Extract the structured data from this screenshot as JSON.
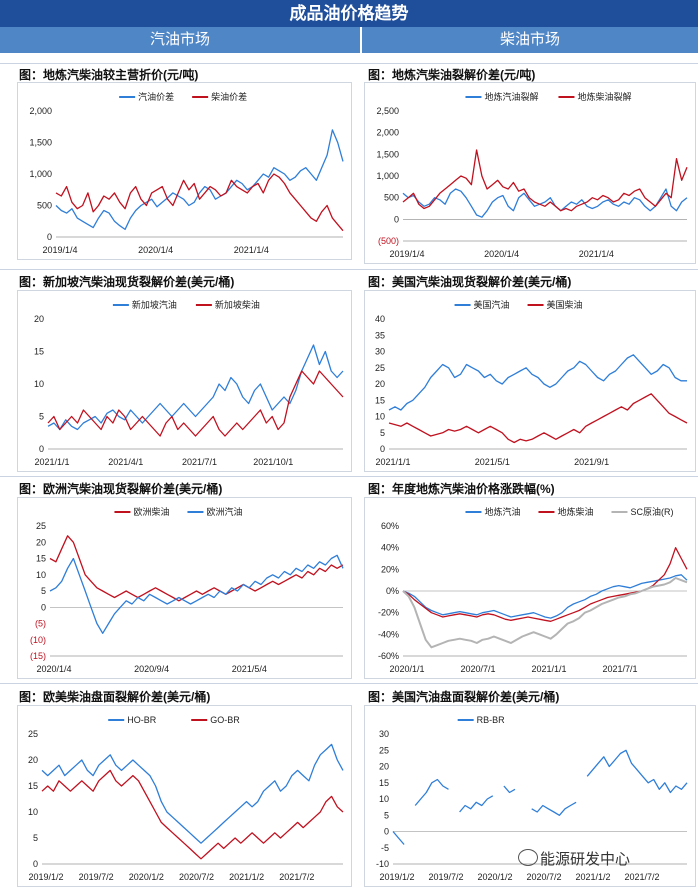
{
  "header": {
    "title": "成品油价格趋势"
  },
  "markets": {
    "gasoline": "汽油市场",
    "diesel": "柴油市场"
  },
  "watermark": "能源研发中心",
  "chart_data": [
    {
      "id": "c1",
      "type": "line",
      "title": "图：地炼汽柴油较主营折价(元/吨)",
      "x_ticks": [
        "2019/1/4",
        "2020/1/4",
        "2021/1/4"
      ],
      "y_ticks": [
        "0",
        "500",
        "1,000",
        "1,500",
        "2,000"
      ],
      "ylim": [
        0,
        2000
      ],
      "legend_position": "top",
      "series": [
        {
          "name": "汽油价差",
          "color": "#2f7ed8",
          "values": [
            500,
            420,
            380,
            450,
            300,
            250,
            200,
            150,
            300,
            420,
            380,
            250,
            180,
            120,
            300,
            420,
            500,
            550,
            600,
            480,
            550,
            620,
            700,
            650,
            600,
            500,
            550,
            700,
            800,
            750,
            600,
            650,
            700,
            800,
            900,
            850,
            750,
            800,
            900,
            1000,
            950,
            1100,
            1050,
            1000,
            900,
            950,
            1050,
            1100,
            1000,
            900,
            1100,
            1300,
            1700,
            1500,
            1200
          ]
        },
        {
          "name": "柴油价差",
          "color": "#c0111f",
          "values": [
            700,
            650,
            800,
            550,
            450,
            500,
            700,
            400,
            500,
            650,
            600,
            700,
            550,
            450,
            700,
            800,
            600,
            500,
            700,
            750,
            800,
            600,
            500,
            700,
            900,
            750,
            850,
            600,
            700,
            800,
            750,
            650,
            700,
            900,
            800,
            750,
            700,
            800,
            850,
            700,
            900,
            1000,
            950,
            850,
            700,
            600,
            500,
            400,
            300,
            250,
            400,
            500,
            300,
            200,
            100
          ]
        }
      ]
    },
    {
      "id": "c2",
      "type": "line",
      "title": "图：地炼汽柴油裂解价差(元/吨)",
      "x_ticks": [
        "2019/1/4",
        "2020/1/4",
        "2021/1/4"
      ],
      "y_ticks": [
        "(500)",
        "0",
        "500",
        "1,000",
        "1,500",
        "2,000",
        "2,500"
      ],
      "ylim": [
        -500,
        2500
      ],
      "legend_position": "top",
      "series": [
        {
          "name": "地炼汽油裂解",
          "color": "#2f7ed8",
          "values": [
            600,
            500,
            550,
            400,
            300,
            350,
            500,
            450,
            350,
            600,
            700,
            650,
            500,
            300,
            100,
            50,
            200,
            400,
            500,
            550,
            300,
            200,
            500,
            600,
            450,
            300,
            350,
            400,
            500,
            300,
            200,
            300,
            400,
            350,
            450,
            300,
            250,
            300,
            400,
            450,
            350,
            300,
            400,
            350,
            500,
            450,
            300,
            200,
            300,
            500,
            700,
            300,
            200,
            400,
            500
          ]
        },
        {
          "name": "地炼柴油裂解",
          "color": "#c0111f",
          "values": [
            400,
            500,
            600,
            350,
            250,
            300,
            450,
            600,
            700,
            800,
            900,
            1000,
            950,
            800,
            1600,
            1000,
            700,
            800,
            900,
            750,
            700,
            850,
            650,
            700,
            500,
            400,
            350,
            300,
            400,
            300,
            200,
            250,
            200,
            300,
            350,
            400,
            500,
            450,
            550,
            500,
            400,
            450,
            600,
            550,
            650,
            700,
            500,
            400,
            300,
            450,
            600,
            500,
            1400,
            900,
            1200
          ]
        }
      ]
    },
    {
      "id": "c3",
      "type": "line",
      "title": "图：新加坡汽柴油现货裂解价差(美元/桶)",
      "x_ticks": [
        "2021/1/1",
        "2021/4/1",
        "2021/7/1",
        "2021/10/1"
      ],
      "y_ticks": [
        "0",
        "5",
        "10",
        "15",
        "20"
      ],
      "ylim": [
        0,
        20
      ],
      "legend_position": "top",
      "series": [
        {
          "name": "新加坡汽油",
          "color": "#2f7ed8",
          "values": [
            3.5,
            4,
            3,
            4.5,
            3.5,
            3,
            4,
            4.5,
            5,
            4,
            5.5,
            6,
            5,
            4.5,
            6,
            5,
            4,
            5,
            6,
            7,
            6,
            5,
            6,
            7,
            6,
            5,
            6,
            7,
            8,
            10,
            9,
            11,
            10,
            8,
            7,
            9,
            10,
            8,
            6,
            7,
            8,
            7,
            9,
            12,
            14,
            16,
            13,
            15,
            12,
            11,
            12
          ]
        },
        {
          "name": "新加坡柴油",
          "color": "#c0111f",
          "values": [
            4,
            5,
            3,
            4,
            5,
            4,
            6,
            5,
            4,
            3,
            5,
            4,
            6,
            5,
            3,
            4,
            5,
            4,
            3,
            2,
            4,
            5,
            3,
            4,
            3,
            2,
            3,
            4,
            5,
            3,
            2,
            3,
            4,
            3,
            4,
            5,
            6,
            4,
            5,
            3,
            4,
            8,
            10,
            12,
            11,
            10,
            12,
            11,
            10,
            9,
            8
          ]
        }
      ]
    },
    {
      "id": "c4",
      "type": "line",
      "title": "图：美国汽柴油现货裂解价差(美元/桶)",
      "x_ticks": [
        "2021/1/1",
        "2021/5/1",
        "2021/9/1"
      ],
      "y_ticks": [
        "0",
        "5",
        "10",
        "15",
        "20",
        "25",
        "30",
        "35",
        "40"
      ],
      "ylim": [
        0,
        40
      ],
      "legend_position": "top",
      "series": [
        {
          "name": "美国汽油",
          "color": "#2f7ed8",
          "values": [
            12,
            13,
            12,
            14,
            15,
            17,
            19,
            22,
            24,
            26,
            25,
            22,
            23,
            26,
            25,
            24,
            22,
            23,
            21,
            20,
            22,
            23,
            24,
            25,
            23,
            22,
            20,
            19,
            20,
            22,
            24,
            25,
            27,
            26,
            24,
            22,
            21,
            23,
            24,
            26,
            28,
            29,
            27,
            25,
            23,
            24,
            26,
            25,
            22,
            21,
            21
          ]
        },
        {
          "name": "美国柴油",
          "color": "#c0111f",
          "values": [
            8,
            7.5,
            7,
            8,
            7,
            6,
            5,
            4,
            4.5,
            5,
            6,
            5.5,
            6,
            7,
            6,
            5,
            6,
            7,
            6,
            5,
            3,
            2,
            3,
            2.5,
            3,
            4,
            5,
            4,
            3,
            4,
            5,
            6,
            5,
            7,
            8,
            9,
            10,
            11,
            12,
            13,
            12,
            14,
            15,
            16,
            17,
            15,
            13,
            11,
            10,
            9,
            8
          ]
        }
      ]
    },
    {
      "id": "c5",
      "type": "line",
      "title": "图：欧洲汽柴油现货裂解价差(美元/桶)",
      "x_ticks": [
        "2020/1/4",
        "2020/9/4",
        "2021/5/4"
      ],
      "y_ticks": [
        "(15)",
        "(10)",
        "(5)",
        "0",
        "5",
        "10",
        "15",
        "20",
        "25"
      ],
      "ylim": [
        -15,
        25
      ],
      "legend_position": "top",
      "series": [
        {
          "name": "欧洲柴油",
          "color": "#c0111f",
          "values": [
            15,
            14,
            18,
            22,
            20,
            15,
            10,
            8,
            6,
            5,
            4,
            3,
            4,
            5,
            4,
            3,
            4,
            5,
            6,
            5,
            4,
            3,
            2,
            3,
            4,
            5,
            4,
            5,
            6,
            5,
            4,
            5,
            6,
            7,
            6,
            5,
            6,
            7,
            8,
            7,
            8,
            9,
            10,
            9,
            11,
            10,
            12,
            11,
            13,
            12,
            13
          ]
        },
        {
          "name": "欧洲汽油",
          "color": "#2f7ed8",
          "values": [
            5,
            6,
            8,
            12,
            15,
            10,
            5,
            0,
            -5,
            -8,
            -5,
            -2,
            0,
            2,
            1,
            3,
            2,
            4,
            3,
            2,
            1,
            2,
            3,
            2,
            1,
            2,
            3,
            4,
            3,
            5,
            4,
            6,
            5,
            7,
            6,
            8,
            7,
            9,
            10,
            9,
            11,
            10,
            12,
            11,
            13,
            12,
            14,
            13,
            15,
            16,
            12
          ]
        }
      ]
    },
    {
      "id": "c6",
      "type": "line",
      "title": "图：年度地炼汽柴油价格涨跌幅(%)",
      "x_ticks": [
        "2020/1/1",
        "2020/7/1",
        "2021/1/1",
        "2021/7/1"
      ],
      "y_ticks": [
        "-60%",
        "-40%",
        "-20%",
        "0%",
        "20%",
        "40%",
        "60%"
      ],
      "ylim": [
        -60,
        60
      ],
      "legend_position": "top",
      "series": [
        {
          "name": "地炼汽油",
          "color": "#2f7ed8",
          "values": [
            0,
            -2,
            -5,
            -10,
            -15,
            -18,
            -20,
            -22,
            -21,
            -20,
            -19,
            -20,
            -21,
            -22,
            -20,
            -19,
            -18,
            -20,
            -22,
            -24,
            -23,
            -22,
            -21,
            -20,
            -22,
            -24,
            -25,
            -23,
            -20,
            -15,
            -12,
            -10,
            -8,
            -5,
            -3,
            0,
            2,
            4,
            5,
            4,
            3,
            5,
            7,
            8,
            9,
            10,
            11,
            12,
            14,
            15,
            10
          ]
        },
        {
          "name": "地炼柴油",
          "color": "#c0111f",
          "values": [
            0,
            -3,
            -8,
            -12,
            -16,
            -20,
            -22,
            -24,
            -23,
            -22,
            -21,
            -22,
            -23,
            -24,
            -22,
            -21,
            -22,
            -24,
            -26,
            -27,
            -26,
            -25,
            -24,
            -25,
            -26,
            -27,
            -28,
            -26,
            -24,
            -22,
            -20,
            -18,
            -15,
            -12,
            -10,
            -8,
            -6,
            -5,
            -4,
            -3,
            -2,
            -1,
            0,
            2,
            5,
            10,
            15,
            25,
            40,
            30,
            20
          ]
        },
        {
          "name": "SC原油(R)",
          "color": "#b4b4b4",
          "values": [
            0,
            -5,
            -15,
            -30,
            -45,
            -52,
            -50,
            -48,
            -46,
            -45,
            -44,
            -45,
            -46,
            -48,
            -45,
            -44,
            -42,
            -44,
            -46,
            -48,
            -45,
            -42,
            -40,
            -38,
            -40,
            -42,
            -44,
            -40,
            -35,
            -30,
            -28,
            -25,
            -20,
            -18,
            -15,
            -12,
            -10,
            -8,
            -6,
            -5,
            -3,
            -2,
            0,
            2,
            4,
            5,
            6,
            8,
            12,
            10,
            8
          ]
        }
      ]
    },
    {
      "id": "c7",
      "type": "line",
      "title": "图：欧美柴油盘面裂解价差(美元/桶)",
      "x_ticks": [
        "2019/1/2",
        "2019/7/2",
        "2020/1/2",
        "2020/7/2",
        "2021/1/2",
        "2021/7/2"
      ],
      "y_ticks": [
        "0",
        "5",
        "10",
        "15",
        "20",
        "25"
      ],
      "ylim": [
        0,
        25
      ],
      "legend_position": "top",
      "series": [
        {
          "name": "HO-BR",
          "color": "#2f7ed8",
          "values": [
            18,
            17,
            18,
            19,
            17,
            18,
            19,
            20,
            18,
            17,
            19,
            20,
            21,
            19,
            18,
            19,
            20,
            19,
            18,
            17,
            15,
            12,
            10,
            9,
            8,
            7,
            6,
            5,
            4,
            5,
            6,
            7,
            8,
            9,
            10,
            11,
            12,
            11,
            12,
            14,
            15,
            16,
            14,
            15,
            17,
            18,
            17,
            16,
            19,
            21,
            22,
            23,
            20,
            18
          ]
        },
        {
          "name": "GO-BR",
          "color": "#c0111f",
          "values": [
            14,
            15,
            14,
            16,
            15,
            14,
            15,
            16,
            15,
            14,
            16,
            17,
            18,
            16,
            15,
            16,
            17,
            16,
            14,
            12,
            10,
            8,
            7,
            6,
            5,
            4,
            3,
            2,
            1,
            2,
            3,
            4,
            3,
            4,
            5,
            4,
            5,
            6,
            5,
            4,
            5,
            6,
            5,
            6,
            7,
            8,
            7,
            8,
            9,
            10,
            12,
            13,
            11,
            10
          ]
        }
      ]
    },
    {
      "id": "c8",
      "type": "line",
      "title": "图：美国汽油盘面裂解价差(美元/桶)",
      "x_ticks": [
        "2019/1/2",
        "2019/7/2",
        "2020/1/2",
        "2020/7/2",
        "2021/1/2",
        "2021/7/2"
      ],
      "y_ticks": [
        "-10",
        "-5",
        "0",
        "5",
        "10",
        "15",
        "20",
        "25",
        "30"
      ],
      "ylim": [
        -10,
        30
      ],
      "legend_position": "top",
      "series": [
        {
          "name": "RB-BR",
          "color": "#2f7ed8",
          "values": [
            0,
            -2,
            -4,
            null,
            8,
            10,
            12,
            15,
            16,
            14,
            13,
            null,
            6,
            8,
            7,
            9,
            8,
            10,
            11,
            null,
            14,
            12,
            13,
            null,
            null,
            7,
            6,
            8,
            7,
            6,
            5,
            7,
            8,
            9,
            null,
            17,
            19,
            21,
            23,
            20,
            22,
            24,
            25,
            21,
            19,
            17,
            15,
            16,
            13,
            15,
            12,
            14,
            13,
            15
          ]
        }
      ]
    }
  ]
}
